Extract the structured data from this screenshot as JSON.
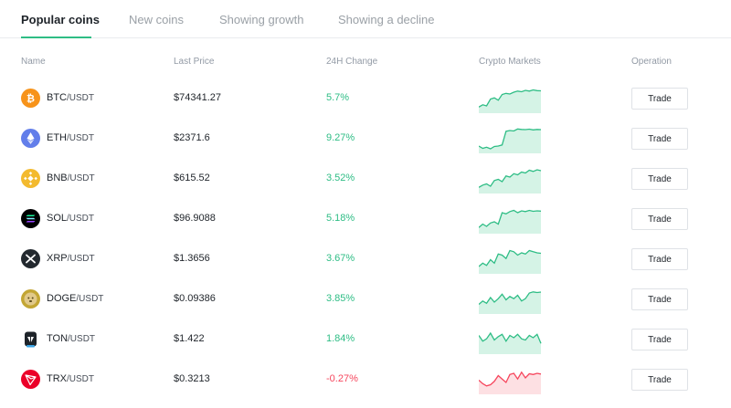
{
  "tabs": [
    {
      "label": "Popular coins",
      "active": true
    },
    {
      "label": "New coins",
      "active": false
    },
    {
      "label": "Showing growth",
      "active": false
    },
    {
      "label": "Showing a decline",
      "active": false
    }
  ],
  "columns": {
    "name": "Name",
    "last_price": "Last Price",
    "change_24h": "24H Change",
    "markets": "Crypto Markets",
    "operation": "Operation"
  },
  "colors": {
    "up": "#2ebd85",
    "down": "#f6465d",
    "up_fill": "#d5f3e6",
    "down_fill": "#fde0e3"
  },
  "coins": [
    {
      "base": "BTC",
      "quote": "/USDT",
      "price": "$74341.27",
      "change": "5.7%",
      "trend": "up",
      "icon": "bitcoin-icon",
      "icon_color": "#f7931a",
      "spark": [
        0.15,
        0.25,
        0.2,
        0.5,
        0.55,
        0.45,
        0.7,
        0.75,
        0.72,
        0.8,
        0.85,
        0.82,
        0.88,
        0.85,
        0.9,
        0.87,
        0.86
      ]
    },
    {
      "base": "ETH",
      "quote": "/USDT",
      "price": "$2371.6",
      "change": "9.27%",
      "trend": "up",
      "icon": "ethereum-icon",
      "icon_color": "#627eea",
      "spark": [
        0.2,
        0.1,
        0.15,
        0.08,
        0.18,
        0.2,
        0.25,
        0.85,
        0.88,
        0.86,
        0.95,
        0.93,
        0.92,
        0.94,
        0.91,
        0.93,
        0.92
      ]
    },
    {
      "base": "BNB",
      "quote": "/USDT",
      "price": "$615.52",
      "change": "3.52%",
      "trend": "up",
      "icon": "bnb-icon",
      "icon_color": "#f3ba2f",
      "spark": [
        0.15,
        0.25,
        0.3,
        0.2,
        0.45,
        0.5,
        0.4,
        0.65,
        0.6,
        0.75,
        0.7,
        0.82,
        0.78,
        0.9,
        0.85,
        0.92,
        0.88
      ]
    },
    {
      "base": "SOL",
      "quote": "/USDT",
      "price": "$96.9088",
      "change": "5.18%",
      "trend": "up",
      "icon": "solana-icon",
      "icon_color": "#1e2329",
      "spark": [
        0.15,
        0.3,
        0.2,
        0.35,
        0.4,
        0.3,
        0.8,
        0.75,
        0.85,
        0.9,
        0.8,
        0.88,
        0.85,
        0.9,
        0.86,
        0.88,
        0.87
      ]
    },
    {
      "base": "XRP",
      "quote": "/USDT",
      "price": "$1.3656",
      "change": "3.67%",
      "trend": "up",
      "icon": "xrp-icon",
      "icon_color": "#23292f",
      "spark": [
        0.2,
        0.35,
        0.25,
        0.5,
        0.35,
        0.75,
        0.7,
        0.55,
        0.9,
        0.85,
        0.7,
        0.8,
        0.75,
        0.9,
        0.85,
        0.8,
        0.78
      ]
    },
    {
      "base": "DOGE",
      "quote": "/USDT",
      "price": "$0.09386",
      "change": "3.85%",
      "trend": "up",
      "icon": "dogecoin-icon",
      "icon_color": "#c3a634",
      "spark": [
        0.3,
        0.45,
        0.35,
        0.6,
        0.4,
        0.55,
        0.75,
        0.5,
        0.65,
        0.55,
        0.7,
        0.45,
        0.55,
        0.8,
        0.85,
        0.82,
        0.84
      ]
    },
    {
      "base": "TON",
      "quote": "/USDT",
      "price": "$1.422",
      "change": "1.84%",
      "trend": "up",
      "icon": "ton-icon",
      "icon_color": "#1e2329",
      "spark": [
        0.7,
        0.45,
        0.55,
        0.8,
        0.5,
        0.65,
        0.75,
        0.45,
        0.7,
        0.6,
        0.75,
        0.55,
        0.5,
        0.7,
        0.6,
        0.75,
        0.35
      ]
    },
    {
      "base": "TRX",
      "quote": "/USDT",
      "price": "$0.3213",
      "change": "-0.27%",
      "trend": "down",
      "icon": "tron-icon",
      "icon_color": "#eb0029",
      "spark": [
        0.5,
        0.35,
        0.25,
        0.3,
        0.45,
        0.7,
        0.55,
        0.4,
        0.75,
        0.8,
        0.55,
        0.85,
        0.6,
        0.78,
        0.75,
        0.8,
        0.77
      ]
    }
  ],
  "trade_label": "Trade"
}
